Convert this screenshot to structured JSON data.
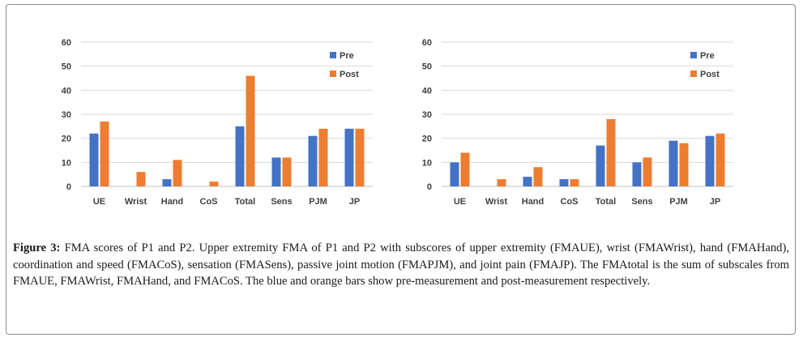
{
  "caption": {
    "label": "Figure 3:",
    "text": "FMA scores of P1 and P2. Upper extremity FMA of P1 and P2 with subscores of upper extremity (FMAUE), wrist (FMAWrist), hand (FMAHand), coordination and speed (FMACoS), sensation (FMASens), passive joint motion (FMAPJM), and joint pain (FMAJP). The FMAtotal is the sum of subscales from FMAUE, FMAWrist, FMAHand, and FMACoS. The blue and orange bars show pre-measurement and post-measurement respectively."
  },
  "colors": {
    "pre": "#4472C4",
    "post": "#ED7D31",
    "grid": "#d9d9d9"
  },
  "chart_data": [
    {
      "type": "bar",
      "categories": [
        "UE",
        "Wrist",
        "Hand",
        "CoS",
        "Total",
        "Sens",
        "PJM",
        "JP"
      ],
      "series": [
        {
          "name": "Pre",
          "values": [
            22,
            0,
            3,
            0,
            25,
            12,
            21,
            24
          ]
        },
        {
          "name": "Post",
          "values": [
            27,
            6,
            11,
            2,
            46,
            12,
            24,
            24
          ]
        }
      ],
      "ylim": [
        0,
        60
      ],
      "yticks": [
        0,
        10,
        20,
        30,
        40,
        50,
        60
      ],
      "grid": true,
      "legend": "top-right"
    },
    {
      "type": "bar",
      "categories": [
        "UE",
        "Wrist",
        "Hand",
        "CoS",
        "Total",
        "Sens",
        "PJM",
        "JP"
      ],
      "series": [
        {
          "name": "Pre",
          "values": [
            10,
            0,
            4,
            3,
            17,
            10,
            19,
            21
          ]
        },
        {
          "name": "Post",
          "values": [
            14,
            3,
            8,
            3,
            28,
            12,
            18,
            22
          ]
        }
      ],
      "ylim": [
        0,
        60
      ],
      "yticks": [
        0,
        10,
        20,
        30,
        40,
        50,
        60
      ],
      "grid": true,
      "legend": "top-right"
    }
  ]
}
